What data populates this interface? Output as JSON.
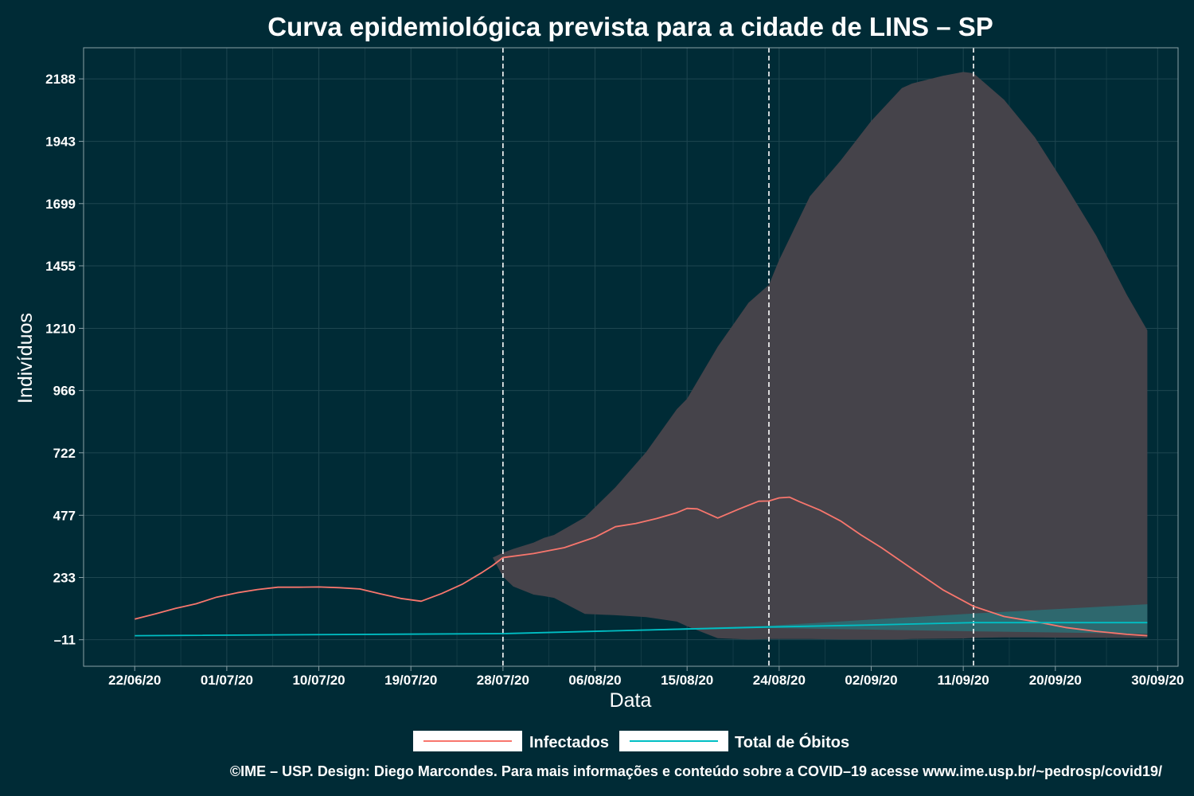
{
  "colors": {
    "background": "#002b36",
    "infectados": "#f8766d",
    "obitos": "#00bfc4",
    "band_infectados": "#45434a",
    "band_obitos": "#2a6f74",
    "grid": "#1e4650",
    "vline": "#ffffff"
  },
  "chart_data": {
    "type": "line",
    "title": "Curva epidemiológica prevista para a cidade de LINS – SP",
    "xlabel": "Data",
    "ylabel": "Indivíduos",
    "x_ticks": [
      "22/06/20",
      "01/07/20",
      "10/07/20",
      "19/07/20",
      "28/07/20",
      "06/08/20",
      "15/08/20",
      "24/08/20",
      "02/09/20",
      "11/09/20",
      "20/09/20",
      "30/09/20"
    ],
    "y_ticks": [
      "–11",
      "233",
      "477",
      "722",
      "966",
      "1210",
      "1455",
      "1699",
      "1943",
      "2188"
    ],
    "xlim": [
      "17/06/20",
      "02/10/20"
    ],
    "ylim": [
      -115,
      2310
    ],
    "grid": true,
    "legend_position": "bottom",
    "vlines": [
      "28/07/20",
      "23/08/20",
      "12/09/20"
    ],
    "series": [
      {
        "name": "Infectados",
        "x": [
          "22/06/20",
          "24/06/20",
          "26/06/20",
          "28/06/20",
          "30/06/20",
          "02/07/20",
          "04/07/20",
          "06/07/20",
          "08/07/20",
          "10/07/20",
          "12/07/20",
          "14/07/20",
          "16/07/20",
          "18/07/20",
          "20/07/20",
          "22/07/20",
          "24/07/20",
          "26/07/20",
          "27/07/20",
          "28/07/20",
          "31/07/20",
          "03/08/20",
          "06/08/20",
          "08/08/20",
          "10/08/20",
          "12/08/20",
          "14/08/20",
          "15/08/20",
          "16/08/20",
          "18/08/20",
          "20/08/20",
          "22/08/20",
          "23/08/20",
          "24/08/20",
          "25/08/20",
          "26/08/20",
          "28/08/20",
          "30/08/20",
          "01/09/20",
          "03/09/20",
          "06/09/20",
          "09/09/20",
          "12/09/20",
          "15/09/20",
          "18/09/20",
          "21/09/20",
          "24/09/20",
          "27/09/20",
          "29/09/20"
        ],
        "y": [
          70,
          90,
          112,
          130,
          156,
          173,
          186,
          195,
          195,
          196,
          193,
          188,
          169,
          151,
          140,
          170,
          206,
          254,
          280,
          311,
          327,
          350,
          391,
          432,
          445,
          464,
          487,
          504,
          502,
          466,
          500,
          532,
          533,
          545,
          548,
          530,
          497,
          455,
          400,
          350,
          267,
          185,
          120,
          80,
          60,
          37,
          22,
          10,
          5
        ]
      },
      {
        "name": "Total de Óbitos",
        "x": [
          "22/06/20",
          "28/07/20",
          "15/08/20",
          "23/08/20",
          "02/09/20",
          "12/09/20",
          "29/09/20"
        ],
        "y": [
          5,
          13,
          31,
          39,
          47,
          56,
          56
        ]
      }
    ],
    "bands": [
      {
        "series": "Infectados",
        "x": [
          "27/07/20",
          "28/07/20",
          "29/07/20",
          "31/07/20",
          "01/08/20",
          "02/08/20",
          "05/08/20",
          "08/08/20",
          "11/08/20",
          "14/08/20",
          "15/08/20",
          "18/08/20",
          "21/08/20",
          "23/08/20",
          "24/08/20",
          "27/08/20",
          "30/08/20",
          "02/09/20",
          "05/09/20",
          "06/09/20",
          "09/09/20",
          "11/09/20",
          "12/09/20",
          "15/09/20",
          "18/09/20",
          "21/09/20",
          "24/09/20",
          "27/09/20",
          "29/09/20"
        ],
        "upper": [
          311,
          330,
          345,
          370,
          388,
          400,
          469,
          587,
          725,
          893,
          934,
          1138,
          1310,
          1381,
          1478,
          1727,
          1867,
          2023,
          2152,
          2170,
          2200,
          2215,
          2210,
          2106,
          1959,
          1771,
          1573,
          1341,
          1202
        ],
        "lower": [
          311,
          236,
          198,
          166,
          160,
          153,
          90,
          85,
          78,
          60,
          42,
          -5,
          -10,
          -8,
          -8,
          -8,
          -10,
          -10,
          -10,
          -8,
          -7,
          -6,
          -4,
          -2,
          -2,
          -3,
          -3,
          -4,
          -4
        ]
      },
      {
        "series": "Total de Óbitos",
        "x": [
          "28/07/20",
          "23/08/20",
          "12/09/20",
          "29/09/20"
        ],
        "upper": [
          13,
          44,
          92,
          128
        ],
        "lower": [
          13,
          35,
          22,
          12
        ]
      }
    ]
  },
  "legend": {
    "items": [
      {
        "label": "Infectados",
        "color": "#f8766d"
      },
      {
        "label": "Total de Óbitos",
        "color": "#00bfc4"
      }
    ]
  },
  "caption": "©IME – USP. Design: Diego Marcondes. Para mais informações e conteúdo sobre a COVID–19 acesse www.ime.usp.br/~pedrosp/covid19/"
}
